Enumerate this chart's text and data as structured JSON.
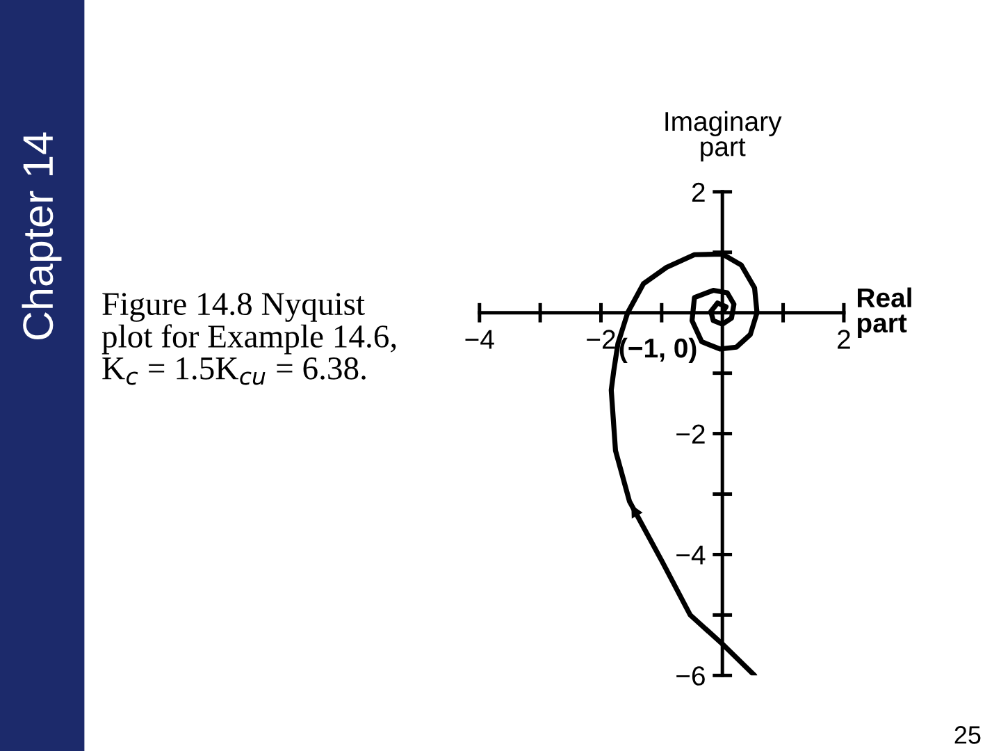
{
  "chart_data": {
    "type": "line",
    "xlabel": "Real part",
    "ylabel": "Imaginary part",
    "annotations": [
      "Chapter 14",
      "Figure 14.8 Nyquist\nplot for Example 14.6,\nK$_{c}$ = 1.5K$_{cu}$ = 6.38.",
      "25",
      "(−1, 0)"
    ],
    "series": [
      {
        "color": "#000000",
        "x": [
          0.53,
          0,
          -0.53,
          -0.99,
          -1.53,
          -1.76,
          -1.83,
          -1.79,
          -1.72,
          -1.56,
          -1.3,
          -0.92,
          -0.46,
          0,
          0.31,
          0.53,
          0.57,
          0.46,
          0.23,
          -0.04,
          -0.34,
          -0.5,
          -0.46,
          -0.15,
          0.08,
          0.19,
          0.15,
          0,
          -0.15,
          -0.19,
          -0.08,
          0.06,
          0
        ],
        "values": [
          -6.0,
          -5.48,
          -5.0,
          -4.12,
          -3.12,
          -2.28,
          -1.28,
          -0.97,
          -0.51,
          0,
          0.48,
          0.75,
          0.96,
          0.97,
          0.79,
          0.41,
          0,
          -0.36,
          -0.57,
          -0.6,
          -0.48,
          -0.13,
          0.25,
          0.37,
          0.33,
          0.14,
          -0.09,
          -0.19,
          -0.13,
          0.02,
          0.16,
          0.1,
          0
        ]
      }
    ],
    "xlim": [
      -4,
      2
    ],
    "ylim": [
      -6,
      2
    ],
    "xticks": [
      -4,
      {
        "value": -3,
        "label": null
      },
      -2,
      {
        "value": -1,
        "label": null
      },
      {
        "value": 1,
        "label": null
      },
      2
    ],
    "yticks": [
      -6,
      {
        "value": -5,
        "label": null
      },
      -4,
      {
        "value": -3,
        "label": null
      },
      -2,
      {
        "value": -1,
        "label": null
      },
      {
        "value": 1,
        "label": null
      },
      2
    ],
    "grid": false,
    "legend": false,
    "marker": "none",
    "line_style": "solid"
  }
}
